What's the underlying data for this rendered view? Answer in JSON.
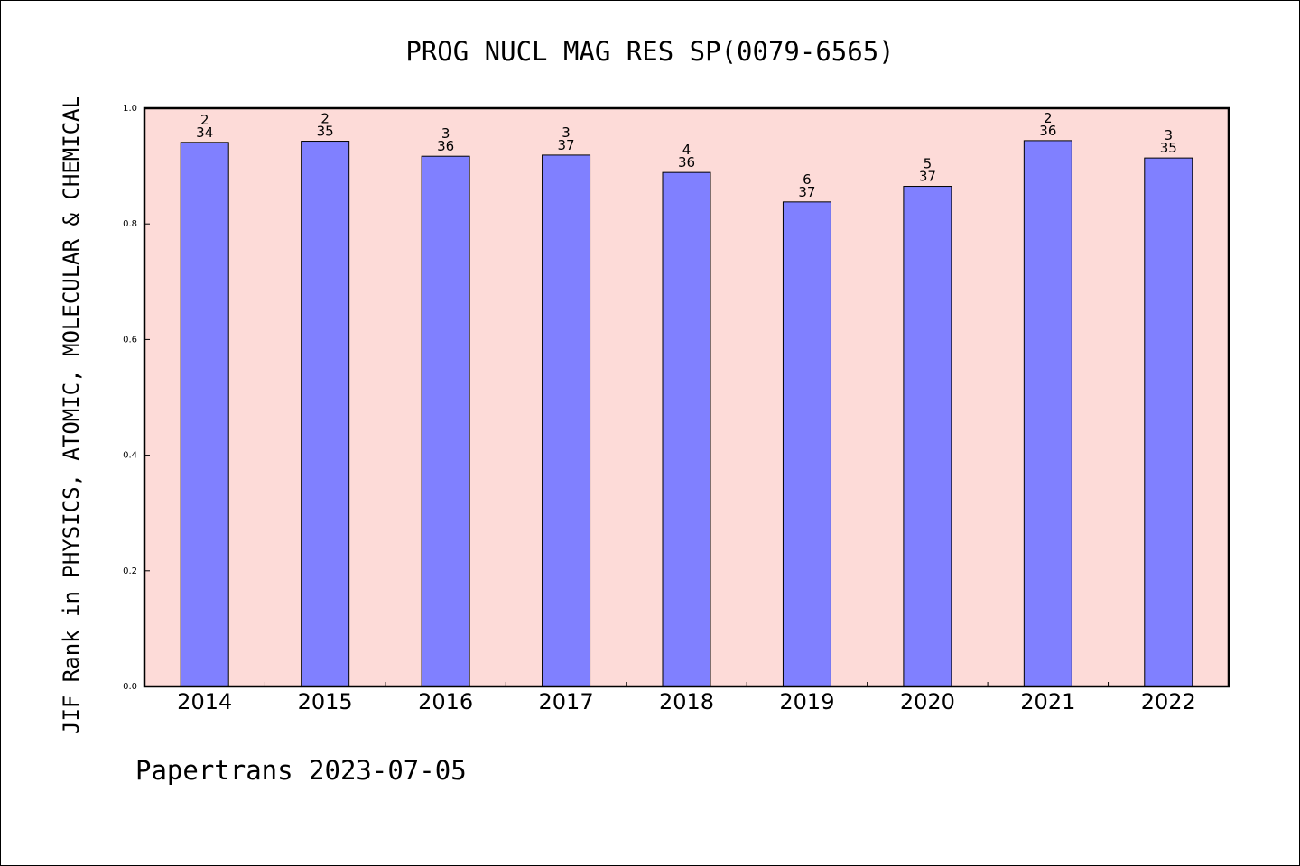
{
  "chart_data": {
    "type": "bar",
    "title": "PROG NUCL MAG RES SP(0079-6565)",
    "ylabel": "JIF Rank in PHYSICS, ATOMIC, MOLECULAR & CHEMICAL",
    "xlabel": "",
    "categories": [
      "2014",
      "2015",
      "2016",
      "2017",
      "2018",
      "2019",
      "2020",
      "2021",
      "2022"
    ],
    "values": [
      0.941,
      0.943,
      0.917,
      0.919,
      0.889,
      0.838,
      0.865,
      0.944,
      0.914
    ],
    "rank": [
      "2",
      "2",
      "3",
      "3",
      "4",
      "6",
      "5",
      "2",
      "3"
    ],
    "total": [
      "34",
      "35",
      "36",
      "37",
      "36",
      "37",
      "37",
      "36",
      "35"
    ],
    "ylim": [
      0,
      1.0
    ],
    "yticks": [
      "0.0",
      "0.2",
      "0.4",
      "0.6",
      "0.8",
      "1.0"
    ],
    "grid": false,
    "colors": {
      "bar": "#8080ff",
      "plot_background": "#fddbd8",
      "axis": "#000000"
    }
  },
  "footer": {
    "credit": "Papertrans 2023-07-05"
  }
}
